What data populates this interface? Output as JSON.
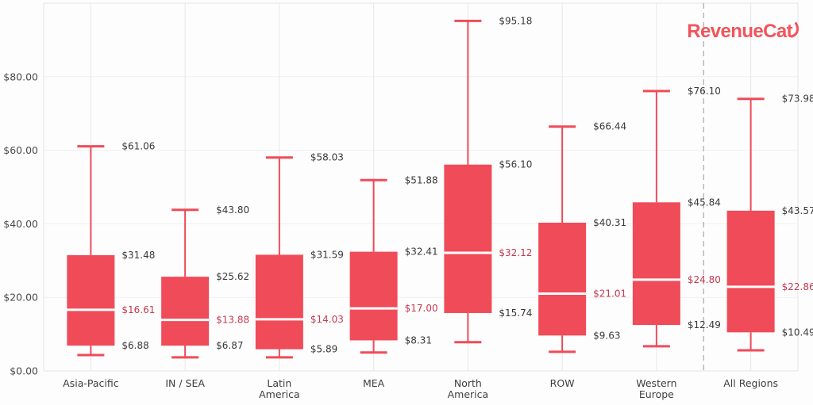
{
  "logo": {
    "text": "RevenueCat",
    "color": "#F2545B"
  },
  "chart_data": {
    "type": "boxplot",
    "title": "",
    "xlabel": "",
    "ylabel": "",
    "ylim": [
      0,
      100
    ],
    "y_ticks": [
      0,
      20,
      40,
      60,
      80
    ],
    "y_tick_labels": [
      "$0.00",
      "$20.00",
      "$40.00",
      "$60.00",
      "$80.00"
    ],
    "grid": true,
    "legend_position": "none",
    "separator_before_category": "All Regions",
    "colors": {
      "box": "#F04B58",
      "whisker": "#F04B58",
      "median_line": "#FFFFFF",
      "value_label": "#3A3A3A",
      "median_label": "#C43A50",
      "grid_vertical": "#E7E7EA",
      "grid_horizontal": "#F0F0F3",
      "plot_border": "#E5E5E9",
      "plot_background": "#FDFDFE",
      "separator": "#B9B9BD",
      "tick_label": "#4B4B4B",
      "category_label": "#3F3F3F"
    },
    "categories": [
      "Asia-Pacific",
      "IN / SEA",
      "Latin America",
      "MEA",
      "North America",
      "ROW",
      "Western Europe",
      "All Regions"
    ],
    "series": [
      {
        "name": "Asia-Pacific",
        "label_lines": [
          "Asia-Pacific"
        ],
        "whisker_low": 4.3,
        "q1": 6.88,
        "median": 16.61,
        "q3": 31.48,
        "whisker_high": 61.06,
        "labeled_values": {
          "whisker_high": "$61.06",
          "q3": "$31.48",
          "median": "$16.61",
          "q1": "$6.88"
        }
      },
      {
        "name": "IN / SEA",
        "label_lines": [
          "IN / SEA"
        ],
        "whisker_low": 3.7,
        "q1": 6.87,
        "median": 13.88,
        "q3": 25.62,
        "whisker_high": 43.8,
        "labeled_values": {
          "whisker_high": "$43.80",
          "q3": "$25.62",
          "median": "$13.88",
          "q1": "$6.87"
        }
      },
      {
        "name": "Latin America",
        "label_lines": [
          "Latin",
          "America"
        ],
        "whisker_low": 3.7,
        "q1": 5.89,
        "median": 14.03,
        "q3": 31.59,
        "whisker_high": 58.03,
        "labeled_values": {
          "whisker_high": "$58.03",
          "q3": "$31.59",
          "median": "$14.03",
          "q1": "$5.89"
        }
      },
      {
        "name": "MEA",
        "label_lines": [
          "MEA"
        ],
        "whisker_low": 5.0,
        "q1": 8.31,
        "median": 17.0,
        "q3": 32.41,
        "whisker_high": 51.88,
        "labeled_values": {
          "whisker_high": "$51.88",
          "q3": "$32.41",
          "median": "$17.00",
          "q1": "$8.31"
        }
      },
      {
        "name": "North America",
        "label_lines": [
          "North",
          "America"
        ],
        "whisker_low": 7.8,
        "q1": 15.74,
        "median": 32.12,
        "q3": 56.1,
        "whisker_high": 95.18,
        "labeled_values": {
          "whisker_high": "$95.18",
          "q3": "$56.10",
          "median": "$32.12",
          "q1": "$15.74"
        }
      },
      {
        "name": "ROW",
        "label_lines": [
          "ROW"
        ],
        "whisker_low": 5.2,
        "q1": 9.63,
        "median": 21.01,
        "q3": 40.31,
        "whisker_high": 66.44,
        "labeled_values": {
          "whisker_high": "$66.44",
          "q3": "$40.31",
          "median": "$21.01",
          "q1": "$9.63"
        }
      },
      {
        "name": "Western Europe",
        "label_lines": [
          "Western",
          "Europe"
        ],
        "whisker_low": 6.7,
        "q1": 12.49,
        "median": 24.8,
        "q3": 45.84,
        "whisker_high": 76.1,
        "labeled_values": {
          "whisker_high": "$76.10",
          "q3": "$45.84",
          "median": "$24.80",
          "q1": "$12.49"
        }
      },
      {
        "name": "All Regions",
        "label_lines": [
          "All Regions"
        ],
        "whisker_low": 5.6,
        "q1": 10.49,
        "median": 22.86,
        "q3": 43.57,
        "whisker_high": 73.98,
        "labeled_values": {
          "whisker_high": "$73.98",
          "q3": "$43.57",
          "median": "$22.86",
          "q1": "$10.49"
        }
      }
    ]
  }
}
